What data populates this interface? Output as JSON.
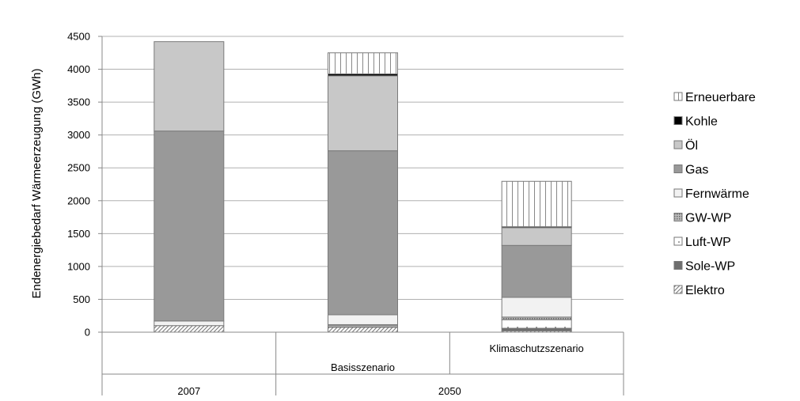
{
  "chart_data": {
    "type": "bar",
    "stacked": true,
    "ylabel": "Endenergiebedarf Wärmeerzeugung (GWh)",
    "ylim": [
      0,
      4500
    ],
    "yticks": [
      "0",
      "500",
      "1000",
      "1500",
      "2000",
      "2500",
      "3000",
      "3500",
      "4000",
      "4500"
    ],
    "categories": [
      "",
      "Basisszenario",
      "Klimaschutzszenario"
    ],
    "groups": [
      {
        "label": "2007",
        "span": 1
      },
      {
        "label": "2050",
        "span": 2
      }
    ],
    "grid": true,
    "legend_position": "right",
    "series": [
      {
        "name": "Elektro",
        "values": [
          100,
          75,
          20
        ],
        "pattern": "diagonal"
      },
      {
        "name": "Sole-WP",
        "values": [
          0,
          10,
          40
        ],
        "pattern": "dark"
      },
      {
        "name": "Luft-WP",
        "values": [
          0,
          20,
          130
        ],
        "pattern": "dots"
      },
      {
        "name": "GW-WP",
        "values": [
          0,
          10,
          40
        ],
        "pattern": "grid"
      },
      {
        "name": "Fernwärme",
        "values": [
          70,
          150,
          300
        ],
        "pattern": "light"
      },
      {
        "name": "Gas",
        "values": [
          2890,
          2495,
          790
        ],
        "pattern": "medium"
      },
      {
        "name": "Öl",
        "values": [
          1360,
          1140,
          270
        ],
        "pattern": "lightgray"
      },
      {
        "name": "Kohle",
        "values": [
          0,
          30,
          15
        ],
        "pattern": "black"
      },
      {
        "name": "Erneuerbare",
        "values": [
          0,
          320,
          690
        ],
        "pattern": "vertical"
      }
    ]
  }
}
